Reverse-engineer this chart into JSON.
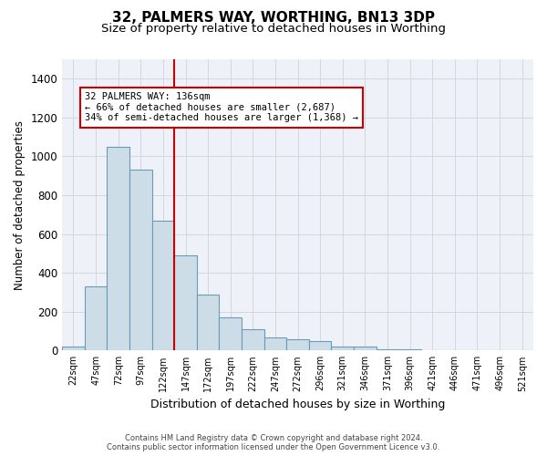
{
  "title": "32, PALMERS WAY, WORTHING, BN13 3DP",
  "subtitle": "Size of property relative to detached houses in Worthing",
  "xlabel": "Distribution of detached houses by size in Worthing",
  "ylabel": "Number of detached properties",
  "bar_color": "#ccdde8",
  "bar_edge_color": "#6a9ab8",
  "categories": [
    "22sqm",
    "47sqm",
    "72sqm",
    "97sqm",
    "122sqm",
    "147sqm",
    "172sqm",
    "197sqm",
    "222sqm",
    "247sqm",
    "272sqm",
    "296sqm",
    "321sqm",
    "346sqm",
    "371sqm",
    "396sqm",
    "421sqm",
    "446sqm",
    "471sqm",
    "496sqm",
    "521sqm"
  ],
  "values": [
    20,
    330,
    1050,
    930,
    670,
    490,
    290,
    170,
    110,
    65,
    60,
    50,
    20,
    20,
    5,
    5,
    2,
    0,
    0,
    0,
    0
  ],
  "ylim": [
    0,
    1500
  ],
  "yticks": [
    0,
    200,
    400,
    600,
    800,
    1000,
    1200,
    1400
  ],
  "annotation_text": "32 PALMERS WAY: 136sqm\n← 66% of detached houses are smaller (2,687)\n34% of semi-detached houses are larger (1,368) →",
  "vline_x_index": 4.5,
  "vline_color": "#cc0000",
  "annotation_box_color": "#cc0000",
  "footer_line1": "Contains HM Land Registry data © Crown copyright and database right 2024.",
  "footer_line2": "Contains public sector information licensed under the Open Government Licence v3.0.",
  "background_color": "#eef2f8",
  "grid_color": "#d0d8e0",
  "title_fontsize": 11,
  "subtitle_fontsize": 9.5,
  "xlabel_fontsize": 9,
  "ylabel_fontsize": 8.5,
  "bar_width": 1.0
}
